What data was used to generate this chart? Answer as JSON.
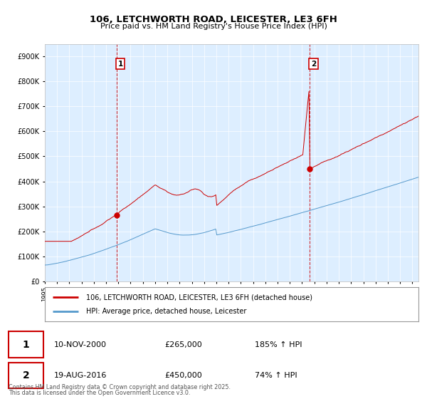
{
  "title1": "106, LETCHWORTH ROAD, LEICESTER, LE3 6FH",
  "title2": "Price paid vs. HM Land Registry's House Price Index (HPI)",
  "red_label": "106, LETCHWORTH ROAD, LEICESTER, LE3 6FH (detached house)",
  "blue_label": "HPI: Average price, detached house, Leicester",
  "event1_date": "10-NOV-2000",
  "event1_price": "£265,000",
  "event1_hpi": "185% ↑ HPI",
  "event2_date": "19-AUG-2016",
  "event2_price": "£450,000",
  "event2_hpi": "74% ↑ HPI",
  "footer": "Contains HM Land Registry data © Crown copyright and database right 2025.\nThis data is licensed under the Open Government Licence v3.0.",
  "ylim_max": 950000,
  "bg_color": "#ddeeff",
  "red_color": "#cc0000",
  "blue_color": "#5599cc",
  "event1_year": 2000.86,
  "event2_year": 2016.62,
  "event1_price_val": 265000,
  "event2_price_val": 450000
}
